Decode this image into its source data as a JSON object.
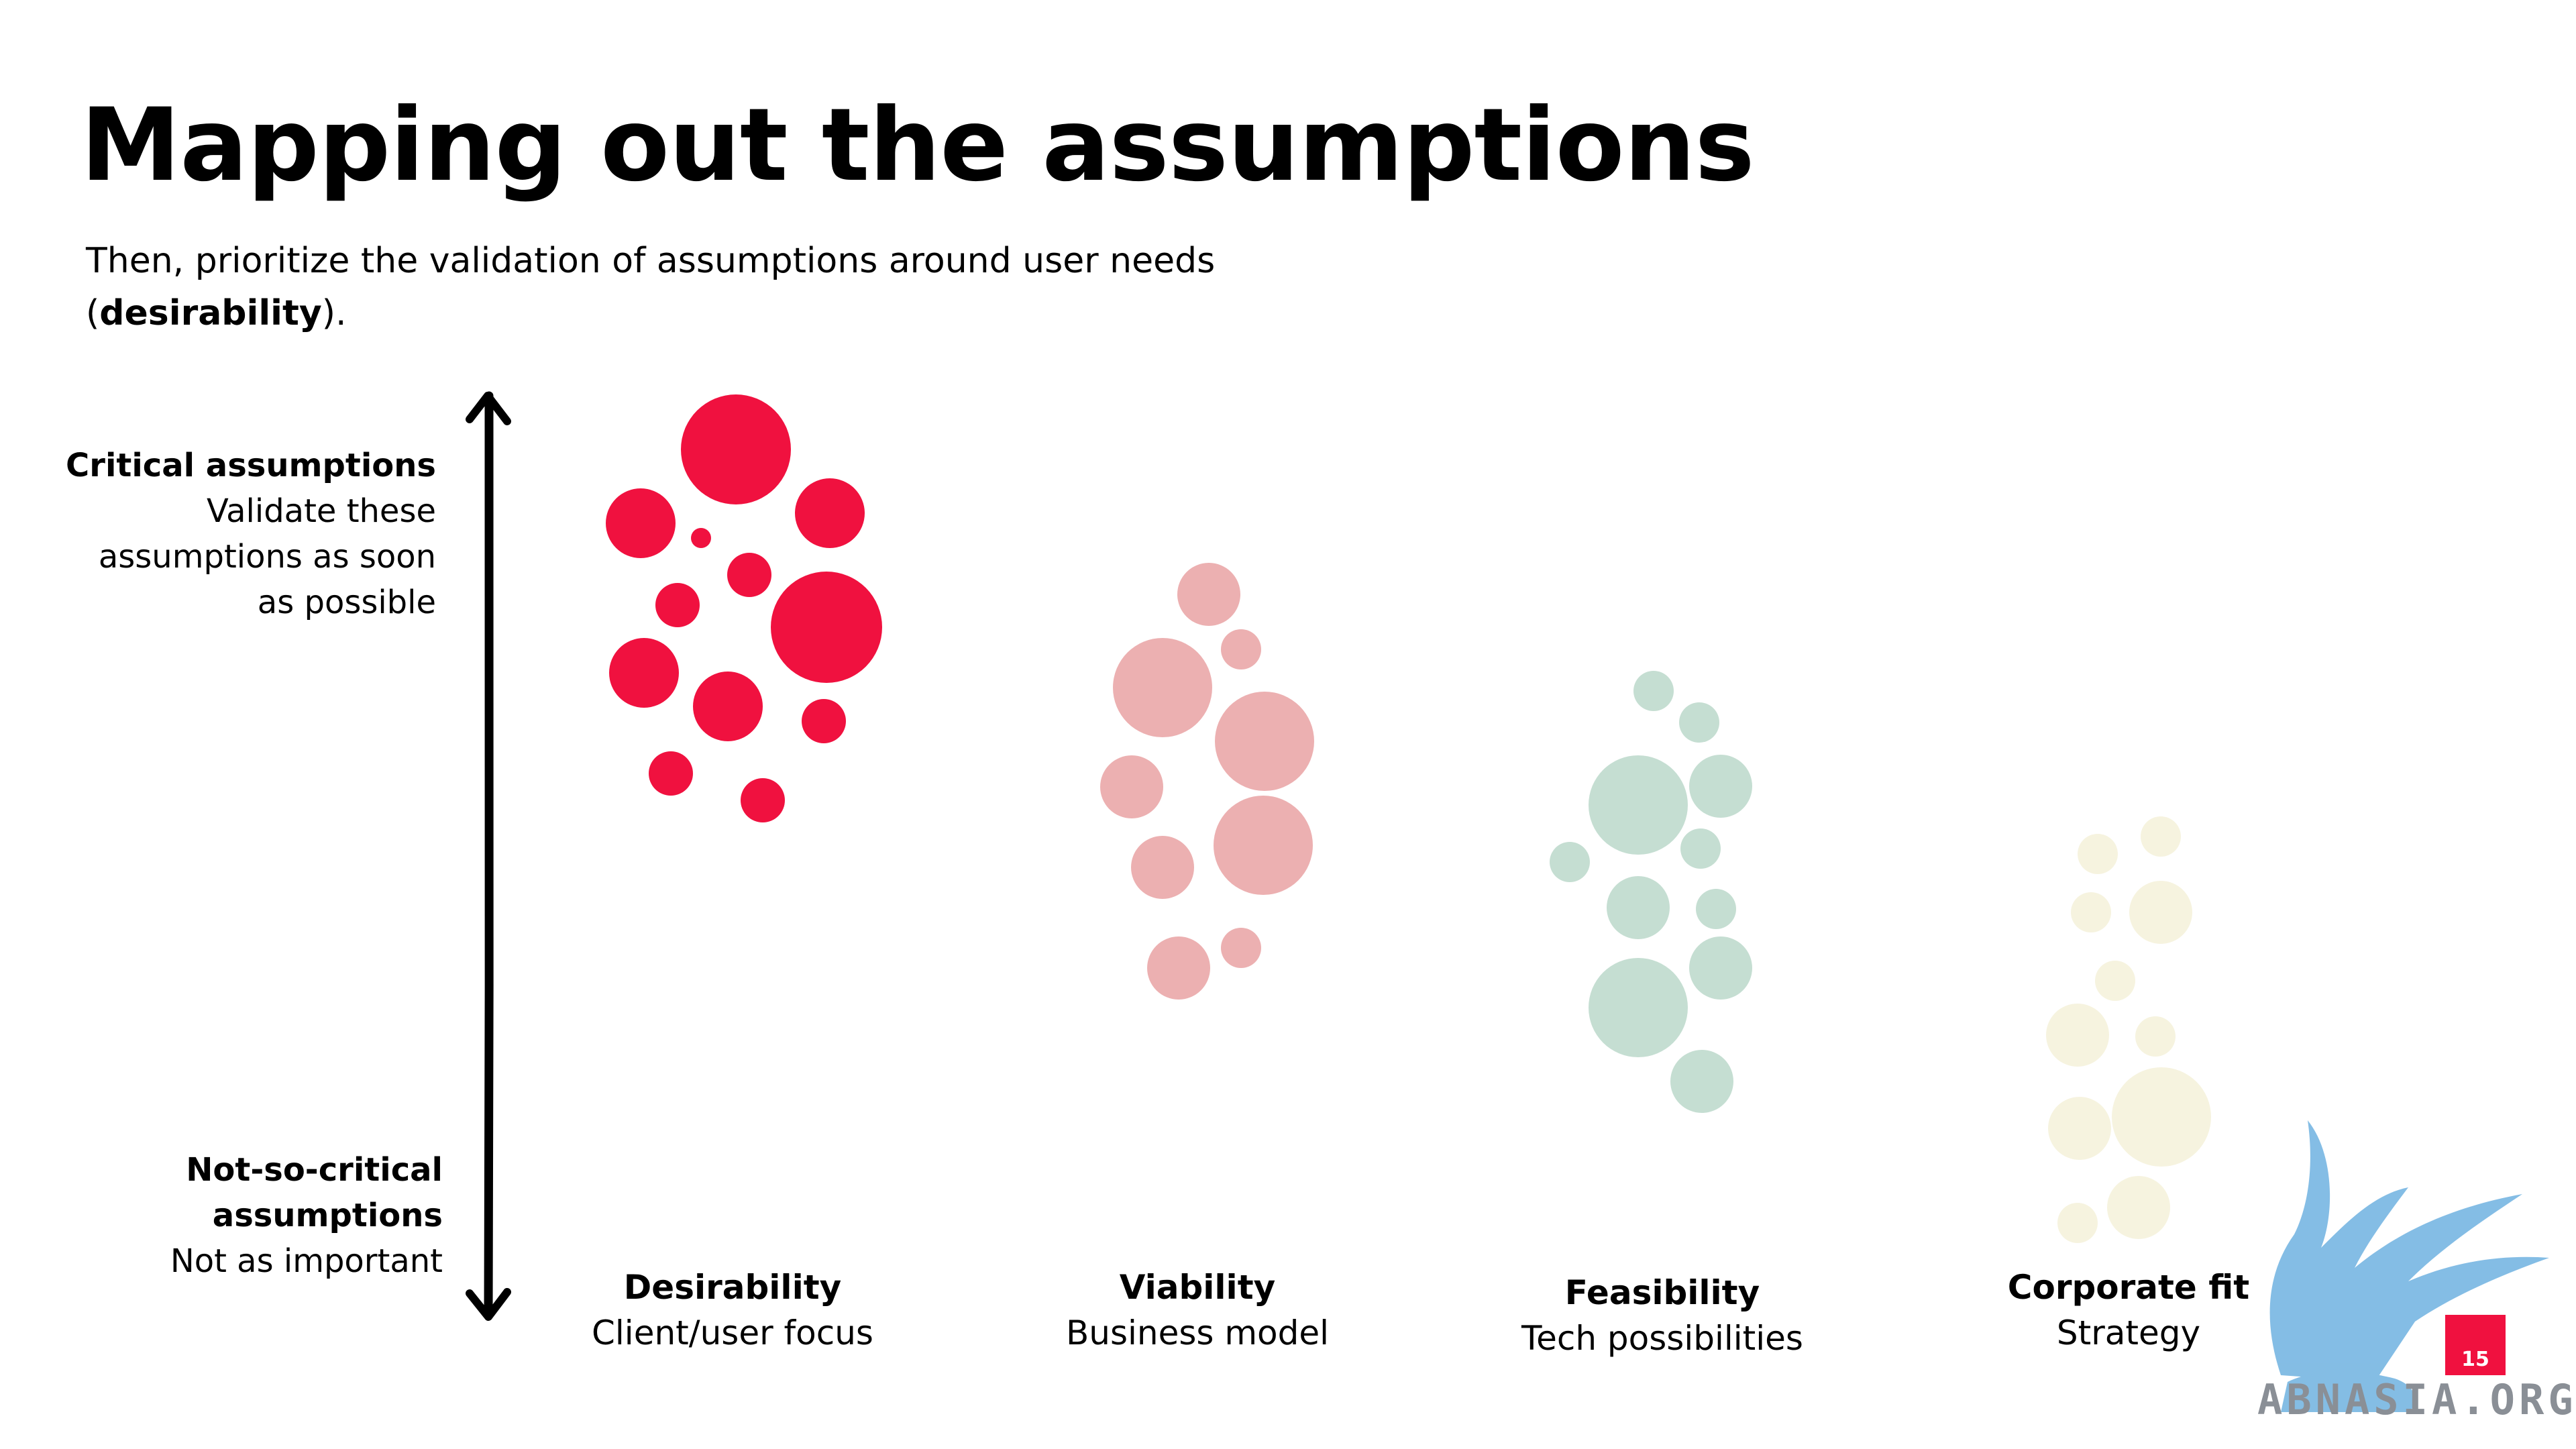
{
  "title": "Mapping out the assumptions",
  "subtitle": {
    "text_before": "Then, prioritize the validation of assumptions around user needs (",
    "bold": "desirability",
    "text_after": ")."
  },
  "axis": {
    "top_heading": "Critical assumptions",
    "top_lines": [
      "Validate these",
      "assumptions as soon",
      "as possible"
    ],
    "bottom_heading_lines": [
      "Not-so-critical",
      "assumptions"
    ],
    "bottom_line": "Not as important"
  },
  "categories": [
    {
      "name": "Desirability",
      "sub": "Client/user focus",
      "color": "#f0113f"
    },
    {
      "name": "Viability",
      "sub": "Business model",
      "color": "#ecb0b1"
    },
    {
      "name": "Feasibility",
      "sub": "Tech possibilities",
      "color": "#c5ded2"
    },
    {
      "name": "Corporate fit",
      "sub": "Strategy",
      "color": "#f6f3df"
    }
  ],
  "page_number": "15",
  "watermark": "ABNASIA.ORG",
  "icons": [
    "double-arrow-icon",
    "griffin-logo-icon"
  ]
}
